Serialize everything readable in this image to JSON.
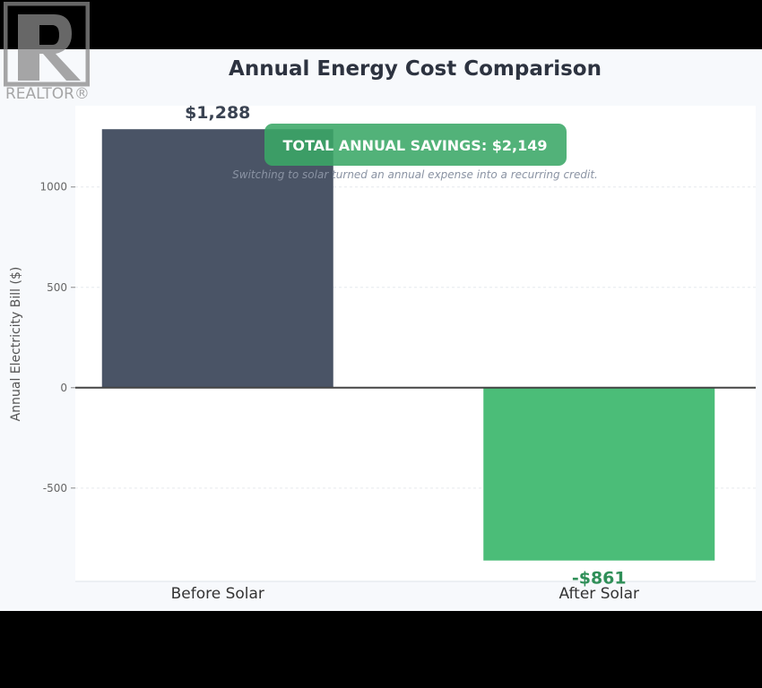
{
  "logo": {
    "text": "REALTOR",
    "mark": "®"
  },
  "chart_data": {
    "type": "bar",
    "title": "Annual Energy Cost Comparison",
    "ylabel": "Annual Electricity Bill ($)",
    "xlabel": "",
    "categories": [
      "Before Solar",
      "After Solar"
    ],
    "values": [
      1288,
      -861
    ],
    "data_labels": [
      "$1,288",
      "-$861"
    ],
    "bar_colors": [
      "#4a5466",
      "#4bbd78"
    ],
    "label_colors": [
      "#3a4352",
      "#2f8f58"
    ],
    "ylim": [
      -965,
      1405
    ],
    "yticks": [
      -500,
      0,
      500,
      1000
    ],
    "ytick_labels": [
      "-500",
      "0",
      "500",
      "1000"
    ],
    "grid": true,
    "annotation": {
      "text": "TOTAL ANNUAL SAVINGS: $2,149",
      "subtext": "Switching to solar turned an annual expense into a recurring credit.",
      "color": "#3aa767"
    }
  }
}
